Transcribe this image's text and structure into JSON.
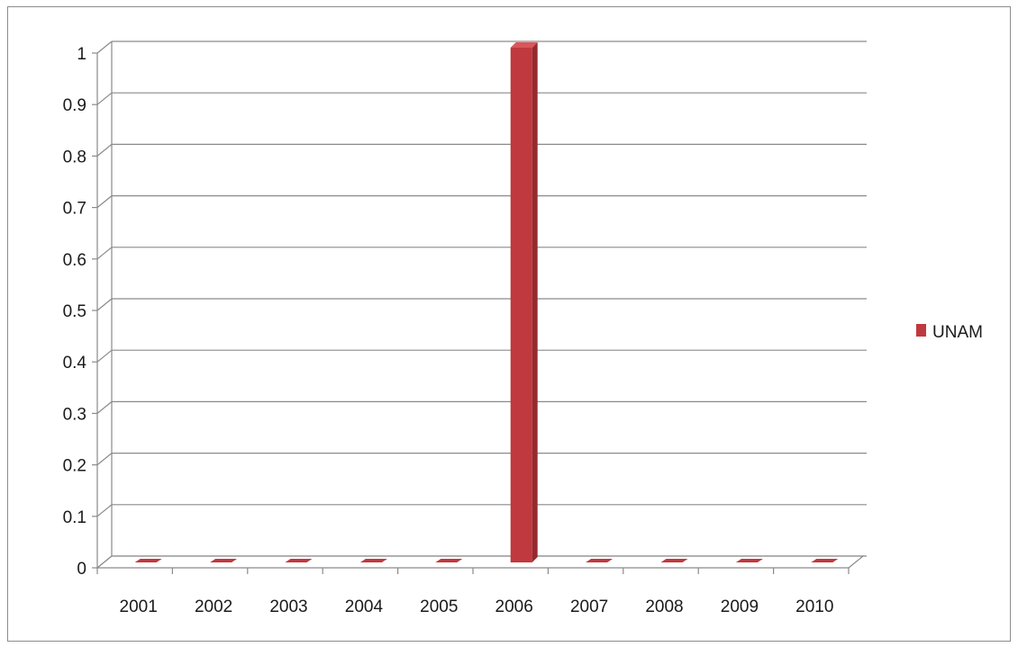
{
  "chart_data": {
    "type": "bar",
    "title": "",
    "xlabel": "",
    "ylabel": "",
    "categories": [
      "2001",
      "2002",
      "2003",
      "2004",
      "2005",
      "2006",
      "2007",
      "2008",
      "2009",
      "2010"
    ],
    "series": [
      {
        "name": "UNAM",
        "values": [
          0,
          0,
          0,
          0,
          0,
          1,
          0,
          0,
          0,
          0
        ],
        "color": "#c0393e"
      }
    ],
    "ylim": [
      0,
      1
    ],
    "yticks": [
      "0",
      "0.1",
      "0.2",
      "0.3",
      "0.4",
      "0.5",
      "0.6",
      "0.7",
      "0.8",
      "0.9",
      "1"
    ],
    "grid": true,
    "legend_position": "right",
    "style": "3d-column"
  }
}
